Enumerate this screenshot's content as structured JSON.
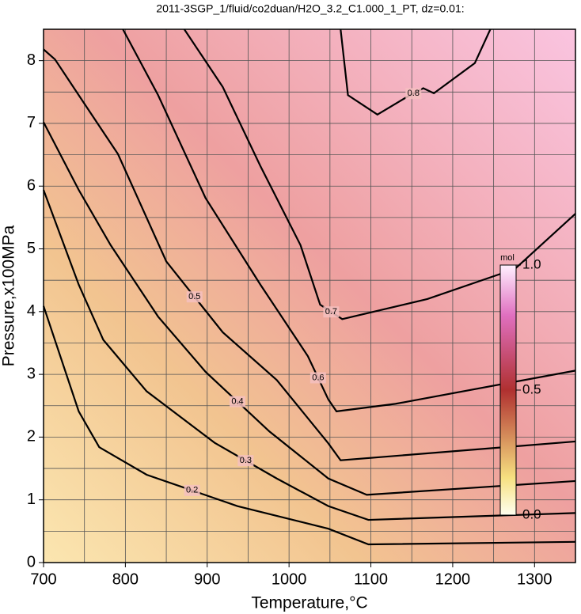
{
  "chart_data": {
    "type": "contour",
    "title": "2011-3SGP_1/fluid/co2duan/H2O_3.2_C1.000_1_PT, dz=0.01:",
    "x_label": "Temperature,°C",
    "y_label": "Pressure,x100MPa",
    "xlim": [
      700,
      1350
    ],
    "ylim": [
      0,
      8.5
    ],
    "xticks": [
      700,
      800,
      900,
      1000,
      1100,
      1200,
      1300
    ],
    "yticks": [
      0,
      1,
      2,
      3,
      4,
      5,
      6,
      7,
      8
    ],
    "grid": true,
    "xgrid": [
      750,
      850,
      950,
      1050,
      1150,
      1250,
      1350
    ],
    "ygrid": [
      0.5,
      1.5,
      2.5,
      3.5,
      4.5,
      5.5,
      6.5,
      7.5
    ],
    "series": [
      {
        "name": "0.2",
        "color": "#000000",
        "x": [
          700,
          743,
          768,
          826,
          937,
          1048,
          1097,
          1350
        ],
        "y": [
          4.09,
          2.41,
          1.84,
          1.4,
          0.9,
          0.54,
          0.29,
          0.33
        ]
      },
      {
        "name": "0.3",
        "color": "#000000",
        "x": [
          700,
          743,
          773,
          826,
          909,
          985,
          1048,
          1097,
          1350
        ],
        "y": [
          5.94,
          4.43,
          3.55,
          2.73,
          1.91,
          1.34,
          0.9,
          0.68,
          0.79
        ]
      },
      {
        "name": "0.4",
        "color": "#000000",
        "x": [
          700,
          743,
          782,
          840,
          898,
          976,
          1048,
          1095,
          1350
        ],
        "y": [
          7.02,
          5.94,
          5.06,
          3.92,
          3.04,
          2.09,
          1.34,
          1.08,
          1.3
        ]
      },
      {
        "name": "0.5",
        "color": "#000000",
        "x": [
          700,
          714,
          743,
          791,
          850,
          919,
          985,
          1048,
          1063,
          1350
        ],
        "y": [
          8.18,
          8.02,
          7.45,
          6.51,
          4.8,
          3.67,
          2.91,
          1.9,
          1.63,
          1.93
        ]
      },
      {
        "name": "0.6",
        "color": "#000000",
        "x": [
          797,
          840,
          898,
          965,
          1023,
          1048,
          1058,
          1130,
          1350
        ],
        "y": [
          8.5,
          7.45,
          5.81,
          4.43,
          3.29,
          2.6,
          2.41,
          2.53,
          3.06
        ]
      },
      {
        "name": "0.7",
        "color": "#000000",
        "x": [
          872,
          919,
          965,
          1014,
          1038,
          1065,
          1169,
          1276,
          1350
        ],
        "y": [
          8.5,
          7.58,
          6.32,
          5.06,
          4.11,
          3.88,
          4.2,
          4.68,
          5.56
        ]
      },
      {
        "name": "0.8",
        "color": "#000000",
        "x": [
          1063,
          1072,
          1108,
          1140,
          1164,
          1177,
          1227,
          1246
        ],
        "y": [
          8.5,
          7.45,
          7.14,
          7.39,
          7.56,
          7.48,
          7.96,
          8.5
        ]
      }
    ],
    "colorbar": {
      "label": "mol",
      "lim": [
        0,
        1
      ],
      "ticks": [
        {
          "value": 0,
          "label": "0.0"
        },
        {
          "value": 0.5,
          "label": "0.5"
        },
        {
          "value": 1,
          "label": "1.0"
        }
      ]
    }
  }
}
